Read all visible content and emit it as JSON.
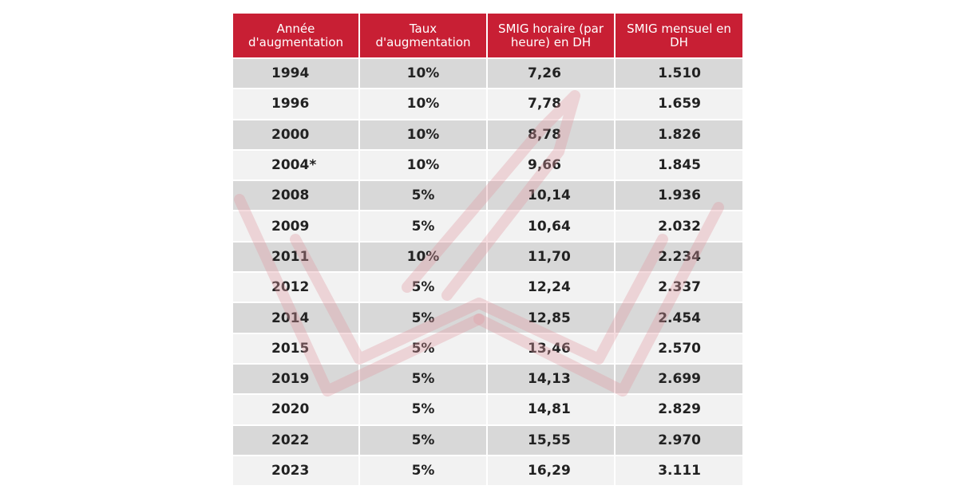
{
  "chart_data": {
    "type": "table",
    "columns": [
      "Année d'augmentation",
      "Taux d'augmentation",
      "SMIG horaire (par heure) en DH",
      "SMIG mensuel en DH"
    ],
    "rows": [
      {
        "year": "1994",
        "rate": "10%",
        "hourly": "7,26",
        "monthly": "1.510"
      },
      {
        "year": "1996",
        "rate": "10%",
        "hourly": "7,78",
        "monthly": "1.659"
      },
      {
        "year": "2000",
        "rate": "10%",
        "hourly": "8,78",
        "monthly": "1.826"
      },
      {
        "year": "2004*",
        "rate": "10%",
        "hourly": "9,66",
        "monthly": "1.845"
      },
      {
        "year": "2008",
        "rate": "5%",
        "hourly": "10,14",
        "monthly": "1.936"
      },
      {
        "year": "2009",
        "rate": "5%",
        "hourly": "10,64",
        "monthly": "2.032"
      },
      {
        "year": "2011",
        "rate": "10%",
        "hourly": "11,70",
        "monthly": "2.234"
      },
      {
        "year": "2012",
        "rate": "5%",
        "hourly": "12,24",
        "monthly": "2.337"
      },
      {
        "year": "2014",
        "rate": "5%",
        "hourly": "12,85",
        "monthly": "2.454"
      },
      {
        "year": "2015",
        "rate": "5%",
        "hourly": "13,46",
        "monthly": "2.570"
      },
      {
        "year": "2019",
        "rate": "5%",
        "hourly": "14,13",
        "monthly": "2.699"
      },
      {
        "year": "2020",
        "rate": "5%",
        "hourly": "14,81",
        "monthly": "2.829"
      },
      {
        "year": "2022",
        "rate": "5%",
        "hourly": "15,55",
        "monthly": "2.970"
      },
      {
        "year": "2023",
        "rate": "5%",
        "hourly": "16,29",
        "monthly": "3.111"
      }
    ]
  },
  "colors": {
    "header_bg": "#c81f34",
    "header_text": "#ffffff",
    "row_dark": "#d8d8d8",
    "row_light": "#f2f2f2",
    "watermark": "#e8a0a8"
  }
}
